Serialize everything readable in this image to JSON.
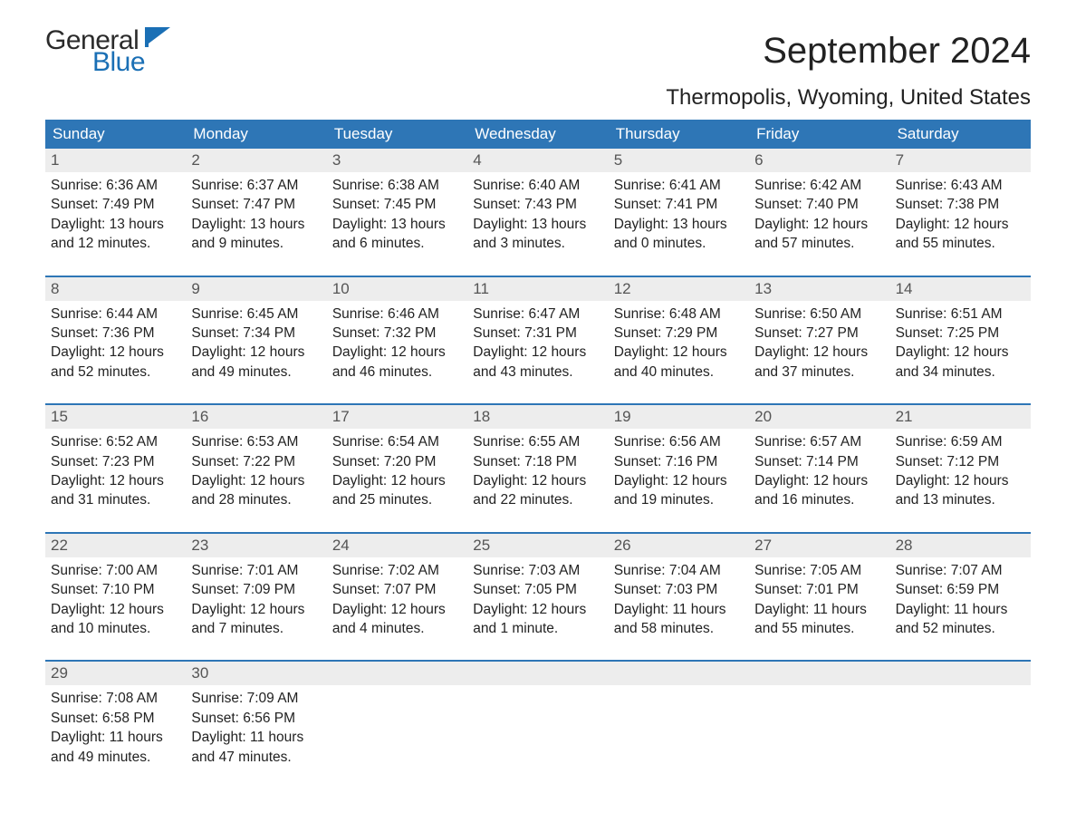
{
  "logo": {
    "word1": "General",
    "word2": "Blue",
    "color_word1": "#2b2b2b",
    "color_word2": "#1a6fb5",
    "icon_fill": "#1a6fb5"
  },
  "title": "September 2024",
  "subtitle": "Thermopolis, Wyoming, United States",
  "colors": {
    "header_bg": "#2e76b6",
    "header_text": "#ffffff",
    "daynum_bg": "#ededed",
    "daynum_text": "#555555",
    "body_text": "#222222",
    "page_bg": "#ffffff"
  },
  "day_headers": [
    "Sunday",
    "Monday",
    "Tuesday",
    "Wednesday",
    "Thursday",
    "Friday",
    "Saturday"
  ],
  "weeks": [
    [
      {
        "n": "1",
        "sr": "6:36 AM",
        "ss": "7:49 PM",
        "dl": "13 hours and 12 minutes."
      },
      {
        "n": "2",
        "sr": "6:37 AM",
        "ss": "7:47 PM",
        "dl": "13 hours and 9 minutes."
      },
      {
        "n": "3",
        "sr": "6:38 AM",
        "ss": "7:45 PM",
        "dl": "13 hours and 6 minutes."
      },
      {
        "n": "4",
        "sr": "6:40 AM",
        "ss": "7:43 PM",
        "dl": "13 hours and 3 minutes."
      },
      {
        "n": "5",
        "sr": "6:41 AM",
        "ss": "7:41 PM",
        "dl": "13 hours and 0 minutes."
      },
      {
        "n": "6",
        "sr": "6:42 AM",
        "ss": "7:40 PM",
        "dl": "12 hours and 57 minutes."
      },
      {
        "n": "7",
        "sr": "6:43 AM",
        "ss": "7:38 PM",
        "dl": "12 hours and 55 minutes."
      }
    ],
    [
      {
        "n": "8",
        "sr": "6:44 AM",
        "ss": "7:36 PM",
        "dl": "12 hours and 52 minutes."
      },
      {
        "n": "9",
        "sr": "6:45 AM",
        "ss": "7:34 PM",
        "dl": "12 hours and 49 minutes."
      },
      {
        "n": "10",
        "sr": "6:46 AM",
        "ss": "7:32 PM",
        "dl": "12 hours and 46 minutes."
      },
      {
        "n": "11",
        "sr": "6:47 AM",
        "ss": "7:31 PM",
        "dl": "12 hours and 43 minutes."
      },
      {
        "n": "12",
        "sr": "6:48 AM",
        "ss": "7:29 PM",
        "dl": "12 hours and 40 minutes."
      },
      {
        "n": "13",
        "sr": "6:50 AM",
        "ss": "7:27 PM",
        "dl": "12 hours and 37 minutes."
      },
      {
        "n": "14",
        "sr": "6:51 AM",
        "ss": "7:25 PM",
        "dl": "12 hours and 34 minutes."
      }
    ],
    [
      {
        "n": "15",
        "sr": "6:52 AM",
        "ss": "7:23 PM",
        "dl": "12 hours and 31 minutes."
      },
      {
        "n": "16",
        "sr": "6:53 AM",
        "ss": "7:22 PM",
        "dl": "12 hours and 28 minutes."
      },
      {
        "n": "17",
        "sr": "6:54 AM",
        "ss": "7:20 PM",
        "dl": "12 hours and 25 minutes."
      },
      {
        "n": "18",
        "sr": "6:55 AM",
        "ss": "7:18 PM",
        "dl": "12 hours and 22 minutes."
      },
      {
        "n": "19",
        "sr": "6:56 AM",
        "ss": "7:16 PM",
        "dl": "12 hours and 19 minutes."
      },
      {
        "n": "20",
        "sr": "6:57 AM",
        "ss": "7:14 PM",
        "dl": "12 hours and 16 minutes."
      },
      {
        "n": "21",
        "sr": "6:59 AM",
        "ss": "7:12 PM",
        "dl": "12 hours and 13 minutes."
      }
    ],
    [
      {
        "n": "22",
        "sr": "7:00 AM",
        "ss": "7:10 PM",
        "dl": "12 hours and 10 minutes."
      },
      {
        "n": "23",
        "sr": "7:01 AM",
        "ss": "7:09 PM",
        "dl": "12 hours and 7 minutes."
      },
      {
        "n": "24",
        "sr": "7:02 AM",
        "ss": "7:07 PM",
        "dl": "12 hours and 4 minutes."
      },
      {
        "n": "25",
        "sr": "7:03 AM",
        "ss": "7:05 PM",
        "dl": "12 hours and 1 minute."
      },
      {
        "n": "26",
        "sr": "7:04 AM",
        "ss": "7:03 PM",
        "dl": "11 hours and 58 minutes."
      },
      {
        "n": "27",
        "sr": "7:05 AM",
        "ss": "7:01 PM",
        "dl": "11 hours and 55 minutes."
      },
      {
        "n": "28",
        "sr": "7:07 AM",
        "ss": "6:59 PM",
        "dl": "11 hours and 52 minutes."
      }
    ],
    [
      {
        "n": "29",
        "sr": "7:08 AM",
        "ss": "6:58 PM",
        "dl": "11 hours and 49 minutes."
      },
      {
        "n": "30",
        "sr": "7:09 AM",
        "ss": "6:56 PM",
        "dl": "11 hours and 47 minutes."
      },
      null,
      null,
      null,
      null,
      null
    ]
  ],
  "labels": {
    "sunrise": "Sunrise: ",
    "sunset": "Sunset: ",
    "daylight": "Daylight: "
  }
}
